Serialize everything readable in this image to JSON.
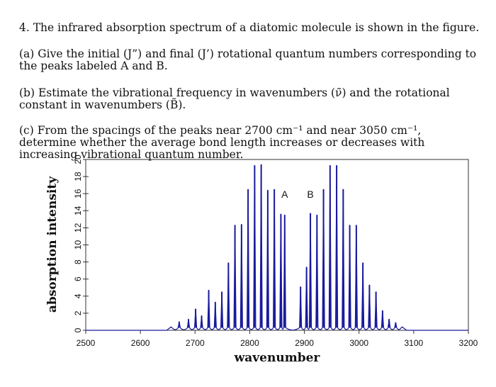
{
  "question": {
    "title": "4. The infrared absorption spectrum of a diatomic molecule is shown in the figure.",
    "part_a": "(a) Give the initial (J”) and final (J’) rotational quantum numbers corresponding to the peaks labeled A and B.",
    "part_b": "(b) Estimate the vibrational frequency in wavenumbers (ν̃) and the rotational constant in wavenumbers (B̃).",
    "part_c": "(c) From the spacings of the peaks near 2700 cm⁻¹ and near 3050 cm⁻¹, determine whether the average bond length increases or decreases with increasing vibrational quantum number."
  },
  "chart_data": {
    "type": "line",
    "xlabel": "wavenumber",
    "ylabel": "absorption intensity",
    "xlim": [
      2500,
      3200
    ],
    "ylim": [
      0,
      20
    ],
    "xticks": [
      "2500",
      "2600",
      "2700",
      "2800",
      "2900",
      "3000",
      "3100",
      "3200"
    ],
    "yticks": [
      "0",
      "2",
      "4",
      "6",
      "8",
      "10",
      "12",
      "14",
      "16",
      "18",
      "20"
    ],
    "line_color": "#1a1a9c",
    "grid": false,
    "annotations": [
      {
        "text": "A",
        "x": 2864,
        "y": 15.5
      },
      {
        "text": "B",
        "x": 2911,
        "y": 15.5
      }
    ],
    "series": [
      {
        "peaks": [
          {
            "x": 2656,
            "y": 0.4
          },
          {
            "x": 2671,
            "y": 1.0
          },
          {
            "x": 2688,
            "y": 1.3
          },
          {
            "x": 2701,
            "y": 2.5
          },
          {
            "x": 2712,
            "y": 1.7
          },
          {
            "x": 2725,
            "y": 4.7
          },
          {
            "x": 2737,
            "y": 3.3
          },
          {
            "x": 2749,
            "y": 4.5
          },
          {
            "x": 2761,
            "y": 7.9
          },
          {
            "x": 2773,
            "y": 12.3
          },
          {
            "x": 2785,
            "y": 12.4
          },
          {
            "x": 2797,
            "y": 16.5
          },
          {
            "x": 2809,
            "y": 19.3
          },
          {
            "x": 2821,
            "y": 19.4
          },
          {
            "x": 2833,
            "y": 16.4
          },
          {
            "x": 2845,
            "y": 16.5
          },
          {
            "x": 2857,
            "y": 13.6
          },
          {
            "x": 2864,
            "y": 13.5
          },
          {
            "x": 2893,
            "y": 5.1
          },
          {
            "x": 2904,
            "y": 7.4
          },
          {
            "x": 2911,
            "y": 13.7
          },
          {
            "x": 2923,
            "y": 13.5
          },
          {
            "x": 2935,
            "y": 16.5
          },
          {
            "x": 2947,
            "y": 19.3
          },
          {
            "x": 2959,
            "y": 19.3
          },
          {
            "x": 2971,
            "y": 16.5
          },
          {
            "x": 2983,
            "y": 12.3
          },
          {
            "x": 2995,
            "y": 12.3
          },
          {
            "x": 3007,
            "y": 7.9
          },
          {
            "x": 3019,
            "y": 5.3
          },
          {
            "x": 3031,
            "y": 4.5
          },
          {
            "x": 3043,
            "y": 2.3
          },
          {
            "x": 3055,
            "y": 1.3
          },
          {
            "x": 3067,
            "y": 0.9
          },
          {
            "x": 3079,
            "y": 0.4
          }
        ]
      }
    ]
  }
}
